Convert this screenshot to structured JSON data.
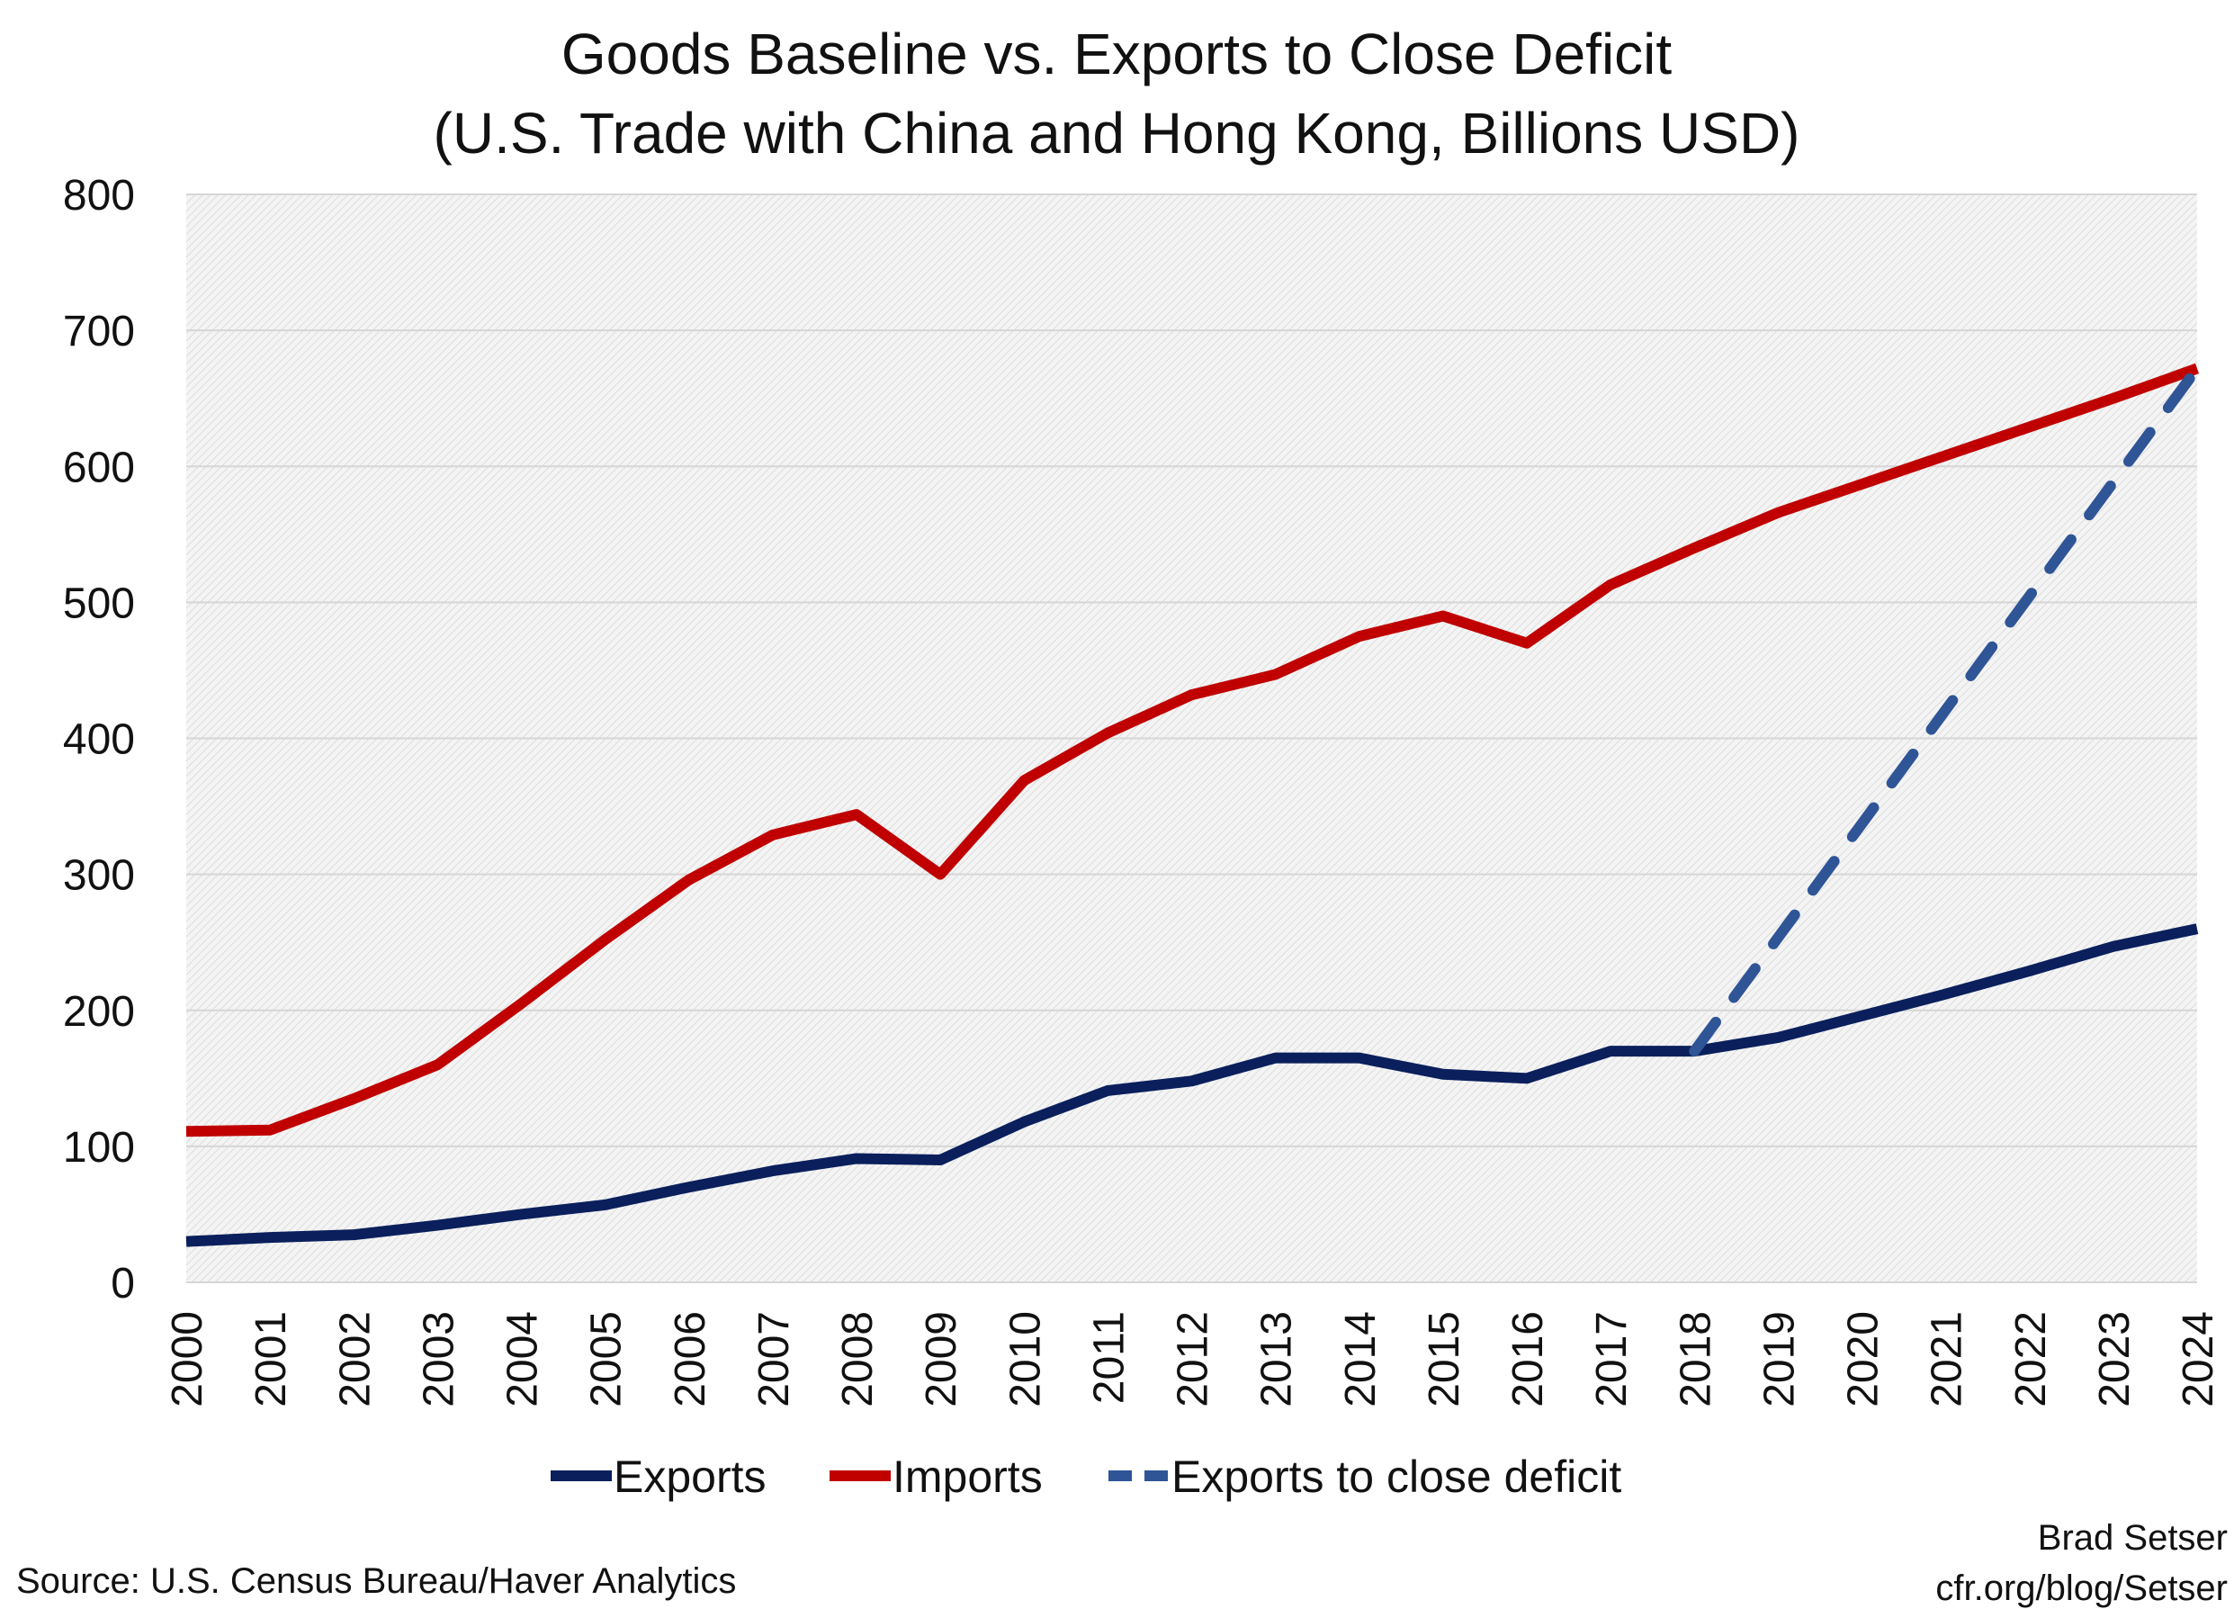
{
  "chart_data": {
    "type": "line",
    "title": "Goods Baseline vs. Exports to Close Deficit",
    "subtitle": "(U.S. Trade with China and Hong Kong, Billions USD)",
    "xlabel": "",
    "ylabel": "",
    "ylim": [
      0,
      800
    ],
    "yticks": [
      0,
      100,
      200,
      300,
      400,
      500,
      600,
      700,
      800
    ],
    "grid": true,
    "legend_position": "bottom",
    "categories": [
      "2000",
      "2001",
      "2002",
      "2003",
      "2004",
      "2005",
      "2006",
      "2007",
      "2008",
      "2009",
      "2010",
      "2011",
      "2012",
      "2013",
      "2014",
      "2015",
      "2016",
      "2017",
      "2018",
      "2019",
      "2020",
      "2021",
      "2022",
      "2023",
      "2024"
    ],
    "series": [
      {
        "name": "Exports",
        "color": "#0a1f5c",
        "dash": false,
        "values": [
          30,
          33,
          35,
          42,
          50,
          57,
          70,
          82,
          91,
          90,
          118,
          141,
          148,
          165,
          165,
          153,
          150,
          170,
          170,
          180,
          196,
          212,
          229,
          247,
          260
        ]
      },
      {
        "name": "Imports",
        "color": "#c00000",
        "dash": false,
        "values": [
          111,
          112,
          135,
          160,
          205,
          252,
          296,
          329,
          344,
          300,
          369,
          404,
          432,
          447,
          475,
          490,
          470,
          513,
          540,
          566,
          587,
          608,
          629,
          650,
          672
        ]
      },
      {
        "name": "Exports to close deficit",
        "color": "#2f5597",
        "dash": true,
        "x": [
          "2018",
          "2024"
        ],
        "values": [
          170,
          672
        ]
      }
    ]
  },
  "footer": {
    "source": "Source: U.S. Census Bureau/Haver Analytics",
    "author": "Brad Setser",
    "url": "cfr.org/blog/Setser"
  }
}
